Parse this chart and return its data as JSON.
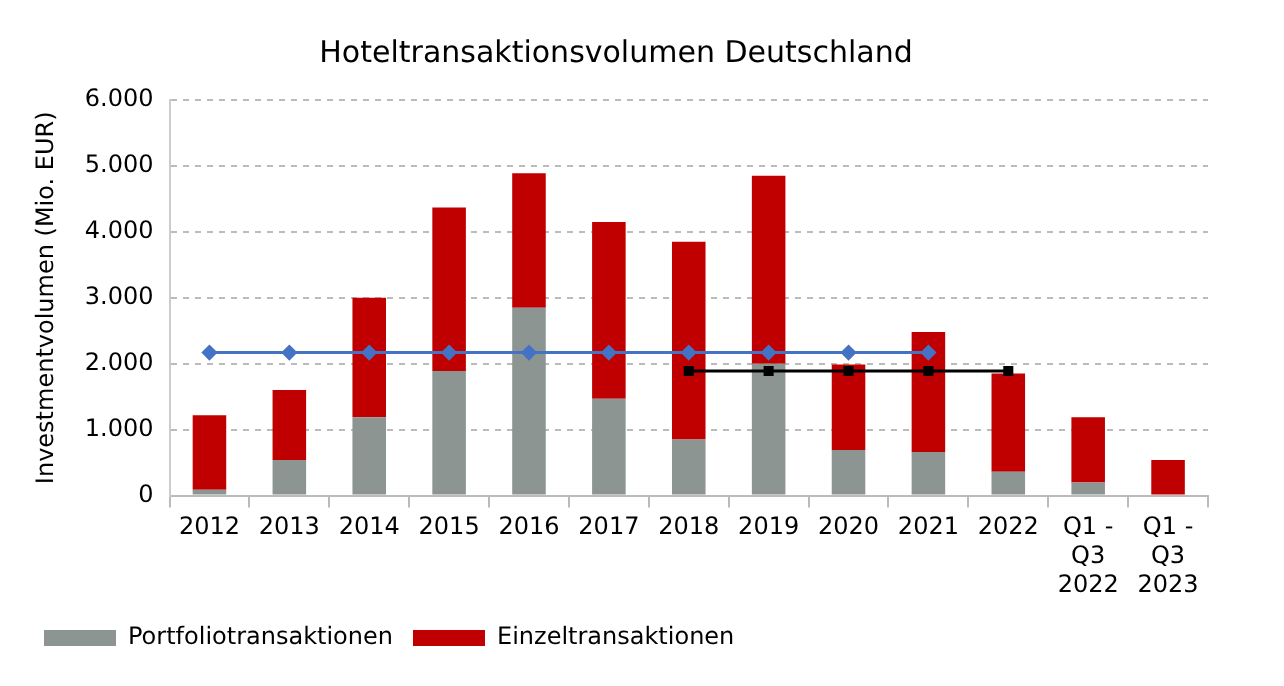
{
  "chart_data": {
    "type": "bar",
    "title": "Hoteltransaktionsvolumen Deutschland",
    "ylabel": "Investmentvolumen (Mio. EUR)",
    "categories": [
      "2012",
      "2013",
      "2014",
      "2015",
      "2016",
      "2017",
      "2018",
      "2019",
      "2020",
      "2021",
      "2022",
      "Q1 -\nQ3\n2022",
      "Q1 -\nQ3\n2023"
    ],
    "stacked": true,
    "series": [
      {
        "name": "Portfoliotransaktionen",
        "color": "#8c9591",
        "values": [
          90,
          540,
          1190,
          1890,
          2850,
          1470,
          850,
          2000,
          690,
          660,
          360,
          200,
          0
        ]
      },
      {
        "name": "Einzeltransaktionen",
        "color": "#c00000",
        "values": [
          1130,
          1060,
          1810,
          2480,
          2040,
          2680,
          3000,
          2850,
          1300,
          1820,
          1490,
          990,
          540
        ]
      },
      {
        "type": "line",
        "color": "#4472c4",
        "marker": "diamond",
        "values": [
          2170,
          2170,
          2170,
          2170,
          2170,
          2170,
          2170,
          2170,
          2170,
          2170,
          null,
          null,
          null
        ]
      },
      {
        "type": "line",
        "color": "#000000",
        "marker": "square",
        "values": [
          null,
          null,
          null,
          null,
          null,
          null,
          1890,
          1890,
          1890,
          1890,
          1890,
          null,
          null
        ]
      }
    ],
    "ylim": [
      0,
      6000
    ],
    "yticks": [
      {
        "value": 0,
        "label": "0"
      },
      {
        "value": 1000,
        "label": "1.000"
      },
      {
        "value": 2000,
        "label": "2.000"
      },
      {
        "value": 3000,
        "label": "3.000"
      },
      {
        "value": 4000,
        "label": "4.000"
      },
      {
        "value": 5000,
        "label": "5.000"
      },
      {
        "value": 6000,
        "label": "6.000"
      }
    ],
    "grid": "y",
    "legend": "bottom left"
  }
}
